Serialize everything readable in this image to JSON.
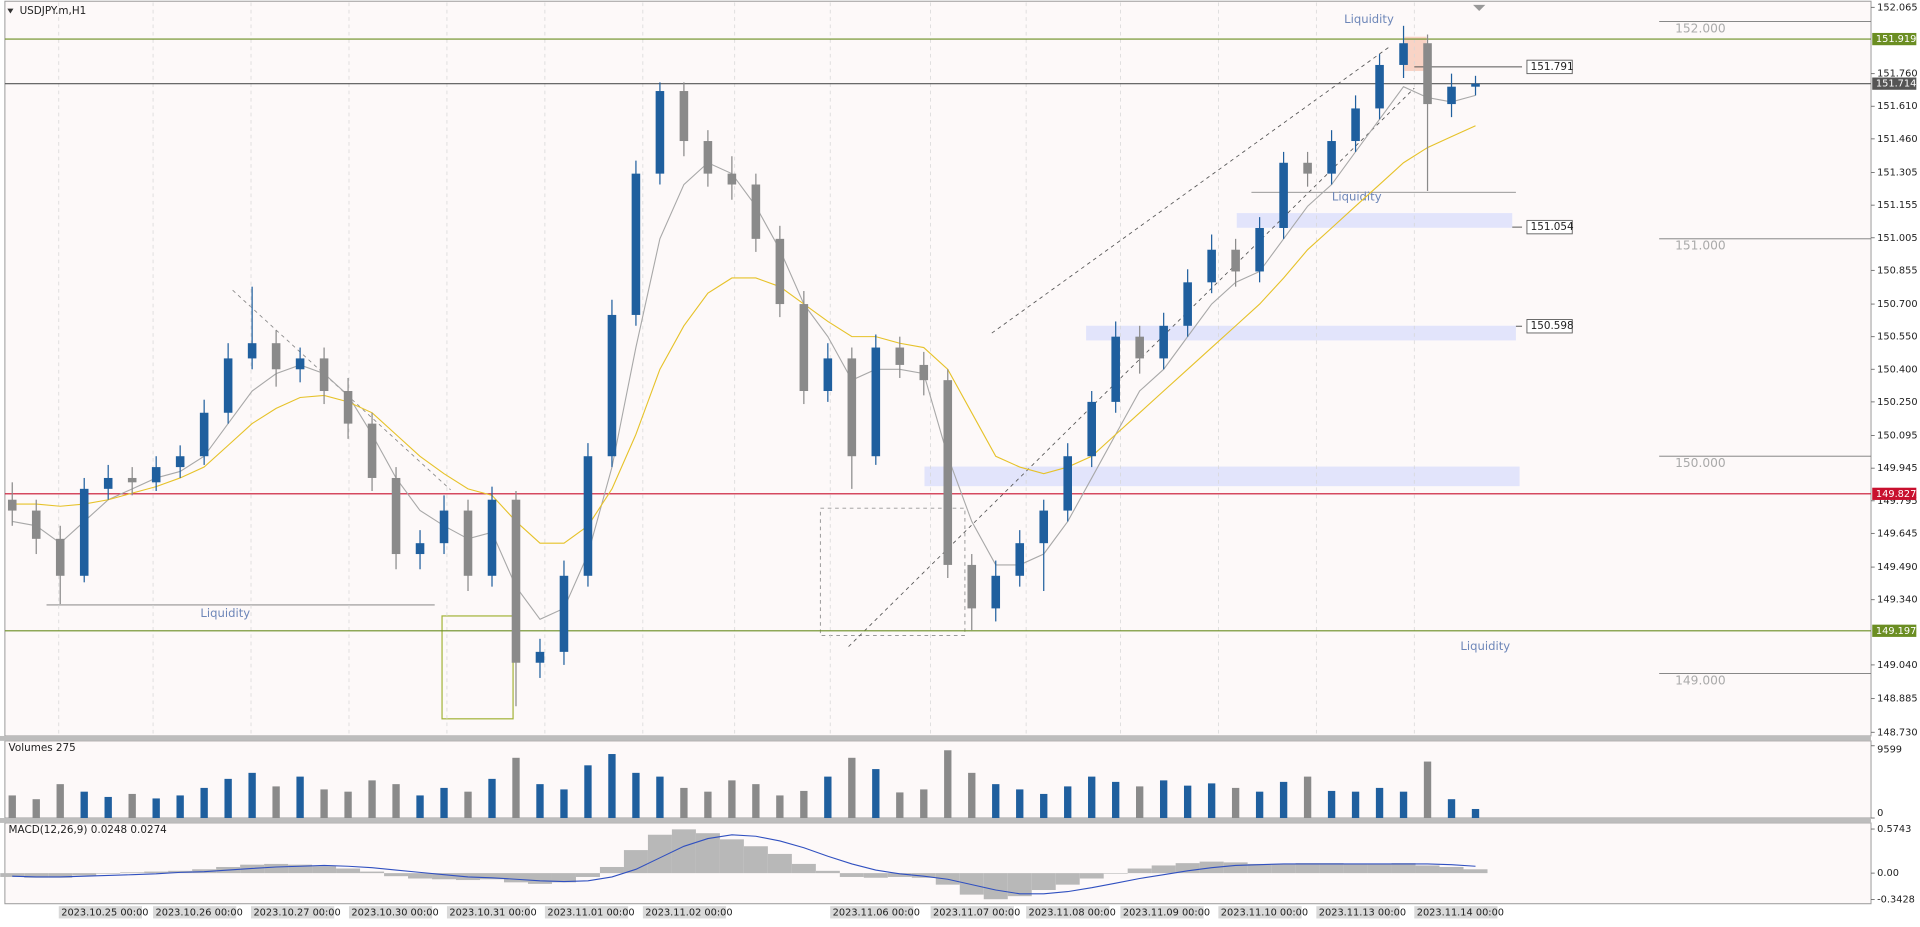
{
  "chart_data": {
    "type": "candlestick",
    "title": "USDJPY.m,H1",
    "up_color": "#1f5f9e",
    "down_color": "#8a8a8a",
    "ylim": [
      148.73,
      152.065
    ],
    "yticks": [
      {
        "value": 152.065,
        "label": "152.065"
      },
      {
        "value": 151.76,
        "label": "151.760"
      },
      {
        "value": 151.61,
        "label": "151.610"
      },
      {
        "value": 151.46,
        "label": "151.460"
      },
      {
        "value": 151.305,
        "label": "151.305"
      },
      {
        "value": 151.155,
        "label": "151.155"
      },
      {
        "value": 151.005,
        "label": "151.005"
      },
      {
        "value": 150.855,
        "label": "150.855"
      },
      {
        "value": 150.7,
        "label": "150.700"
      },
      {
        "value": 150.55,
        "label": "150.550"
      },
      {
        "value": 150.4,
        "label": "150.400"
      },
      {
        "value": 150.25,
        "label": "150.250"
      },
      {
        "value": 150.095,
        "label": "150.095"
      },
      {
        "value": 149.945,
        "label": "149.945"
      },
      {
        "value": 149.795,
        "label": "149.795"
      },
      {
        "value": 149.645,
        "label": "149.645"
      },
      {
        "value": 149.49,
        "label": "149.490"
      },
      {
        "value": 149.34,
        "label": "149.340"
      },
      {
        "value": 149.04,
        "label": "149.040"
      },
      {
        "value": 148.885,
        "label": "148.885"
      },
      {
        "value": 148.73,
        "label": "148.730"
      }
    ],
    "candles": [
      [
        149.8,
        149.88,
        149.68,
        149.75
      ],
      [
        149.75,
        149.8,
        149.55,
        149.62
      ],
      [
        149.62,
        149.68,
        149.32,
        149.45
      ],
      [
        149.45,
        149.9,
        149.42,
        149.85
      ],
      [
        149.85,
        149.96,
        149.8,
        149.9
      ],
      [
        149.9,
        149.95,
        149.82,
        149.88
      ],
      [
        149.88,
        150.0,
        149.84,
        149.95
      ],
      [
        149.95,
        150.05,
        149.9,
        150.0
      ],
      [
        150.0,
        150.26,
        149.96,
        150.2
      ],
      [
        150.2,
        150.52,
        150.15,
        150.45
      ],
      [
        150.45,
        150.78,
        150.4,
        150.52
      ],
      [
        150.52,
        150.58,
        150.32,
        150.4
      ],
      [
        150.4,
        150.5,
        150.34,
        150.45
      ],
      [
        150.45,
        150.5,
        150.24,
        150.3
      ],
      [
        150.3,
        150.36,
        150.08,
        150.15
      ],
      [
        150.15,
        150.2,
        149.84,
        149.9
      ],
      [
        149.9,
        149.95,
        149.48,
        149.55
      ],
      [
        149.55,
        149.66,
        149.48,
        149.6
      ],
      [
        149.6,
        149.82,
        149.55,
        149.75
      ],
      [
        149.75,
        149.8,
        149.38,
        149.45
      ],
      [
        149.45,
        149.86,
        149.4,
        149.8
      ],
      [
        149.8,
        149.84,
        148.85,
        149.05
      ],
      [
        149.05,
        149.16,
        148.98,
        149.1
      ],
      [
        149.1,
        149.52,
        149.04,
        149.45
      ],
      [
        149.45,
        150.06,
        149.4,
        150.0
      ],
      [
        150.0,
        150.72,
        149.95,
        150.65
      ],
      [
        150.65,
        151.36,
        150.6,
        151.3
      ],
      [
        151.3,
        151.72,
        151.25,
        151.68
      ],
      [
        151.68,
        151.72,
        151.38,
        151.45
      ],
      [
        151.45,
        151.5,
        151.24,
        151.3
      ],
      [
        151.3,
        151.38,
        151.18,
        151.25
      ],
      [
        151.25,
        151.3,
        150.94,
        151.0
      ],
      [
        151.0,
        151.06,
        150.64,
        150.7
      ],
      [
        150.7,
        150.76,
        150.24,
        150.3
      ],
      [
        150.3,
        150.52,
        150.25,
        150.45
      ],
      [
        150.45,
        150.5,
        149.85,
        150.0
      ],
      [
        150.0,
        150.56,
        149.96,
        150.5
      ],
      [
        150.5,
        150.55,
        150.36,
        150.42
      ],
      [
        150.42,
        150.48,
        150.28,
        150.35
      ],
      [
        150.35,
        150.4,
        149.44,
        149.5
      ],
      [
        149.5,
        149.55,
        149.2,
        149.3
      ],
      [
        149.3,
        149.52,
        149.24,
        149.45
      ],
      [
        149.45,
        149.66,
        149.4,
        149.6
      ],
      [
        149.6,
        149.8,
        149.38,
        149.75
      ],
      [
        149.75,
        150.06,
        149.7,
        150.0
      ],
      [
        150.0,
        150.3,
        149.95,
        150.25
      ],
      [
        150.25,
        150.62,
        150.2,
        150.55
      ],
      [
        150.55,
        150.6,
        150.38,
        150.45
      ],
      [
        150.45,
        150.66,
        150.4,
        150.6
      ],
      [
        150.6,
        150.86,
        150.55,
        150.8
      ],
      [
        150.8,
        151.02,
        150.75,
        150.95
      ],
      [
        150.95,
        151.0,
        150.78,
        150.85
      ],
      [
        150.85,
        151.1,
        150.8,
        151.05
      ],
      [
        151.05,
        151.4,
        151.0,
        151.35
      ],
      [
        151.35,
        151.4,
        151.24,
        151.3
      ],
      [
        151.3,
        151.5,
        151.25,
        151.45
      ],
      [
        151.45,
        151.66,
        151.4,
        151.6
      ],
      [
        151.6,
        151.85,
        151.55,
        151.8
      ],
      [
        151.8,
        151.98,
        151.74,
        151.9
      ],
      [
        151.9,
        151.94,
        151.22,
        151.62
      ],
      [
        151.62,
        151.76,
        151.56,
        151.7
      ],
      [
        151.7,
        151.75,
        151.66,
        151.714
      ]
    ],
    "ma_slow": {
      "color": "#e6c229",
      "values": [
        149.78,
        149.78,
        149.77,
        149.78,
        149.8,
        149.83,
        149.86,
        149.9,
        149.95,
        150.05,
        150.15,
        150.22,
        150.27,
        150.28,
        150.25,
        150.2,
        150.1,
        150.0,
        149.92,
        149.85,
        149.82,
        149.7,
        149.6,
        149.6,
        149.68,
        149.85,
        150.1,
        150.4,
        150.6,
        150.75,
        150.82,
        150.82,
        150.78,
        150.7,
        150.62,
        150.55,
        150.55,
        150.52,
        150.5,
        150.4,
        150.2,
        150.0,
        149.95,
        149.92,
        149.95,
        150.0,
        150.1,
        150.2,
        150.3,
        150.4,
        150.5,
        150.6,
        150.7,
        150.82,
        150.95,
        151.05,
        151.15,
        151.25,
        151.35,
        151.42,
        151.47,
        151.52
      ]
    },
    "ma_fast": {
      "color": "#a8a8a8",
      "values": [
        149.7,
        149.68,
        149.6,
        149.7,
        149.8,
        149.85,
        149.9,
        149.93,
        150.0,
        150.15,
        150.3,
        150.38,
        150.42,
        150.38,
        150.28,
        150.1,
        149.9,
        149.75,
        149.68,
        149.62,
        149.65,
        149.4,
        149.25,
        149.3,
        149.55,
        149.95,
        150.5,
        151.0,
        151.25,
        151.35,
        151.3,
        151.15,
        150.95,
        150.7,
        150.55,
        150.35,
        150.4,
        150.4,
        150.38,
        150.0,
        149.7,
        149.5,
        149.5,
        149.55,
        149.7,
        149.9,
        150.1,
        150.3,
        150.4,
        150.55,
        150.7,
        150.8,
        150.85,
        151.0,
        151.15,
        151.25,
        151.4,
        151.55,
        151.7,
        151.65,
        151.63,
        151.66
      ]
    },
    "levels": [
      {
        "value": 151.919,
        "color": "#6b8e23"
      },
      {
        "value": 151.714,
        "color": "#555555"
      },
      {
        "value": 149.827,
        "color": "#c8102e"
      },
      {
        "value": 149.197,
        "color": "#6b8e23"
      }
    ],
    "marked_levels": [
      151.791,
      151.054,
      150.598
    ],
    "round_levels": [
      {
        "value": 152,
        "label": "152.000"
      },
      {
        "value": 151,
        "label": "151.000"
      },
      {
        "value": 150,
        "label": "150.000"
      },
      {
        "value": 149,
        "label": "149.000"
      }
    ],
    "annotations": [
      "Liquidity",
      "Liquidity",
      "Liquidity",
      "Liquidity"
    ],
    "time_labels": [
      "2023.10.25 00:00",
      "2023.10.26 00:00",
      "2023.10.27 00:00",
      "2023.10.30 00:00",
      "2023.10.31 00:00",
      "2023.11.01 00:00",
      "2023.11.02 00:00",
      "2023.11.06 00:00",
      "2023.11.07 00:00",
      "2023.11.08 00:00",
      "2023.11.09 00:00",
      "2023.11.10 00:00",
      "2023.11.13 00:00",
      "2023.11.14 00:00"
    ],
    "volume": {
      "title": "Volumes 275",
      "ylim": [
        0,
        9599
      ],
      "yticks": [
        9599,
        0
      ],
      "values": [
        3000,
        2500,
        4500,
        3500,
        2800,
        3200,
        2600,
        3000,
        4000,
        5200,
        6000,
        4200,
        5500,
        3800,
        3500,
        5000,
        4500,
        3000,
        4000,
        3500,
        5200,
        8000,
        4500,
        3800,
        7000,
        8500,
        6000,
        5500,
        4000,
        3500,
        5000,
        4500,
        3000,
        3600,
        5500,
        8000,
        6500,
        3400,
        3800,
        9000,
        6000,
        4500,
        3800,
        3200,
        4200,
        5500,
        4800,
        4200,
        5000,
        4300,
        4600,
        4000,
        3500,
        4800,
        5500,
        3600,
        3500,
        4000,
        3500,
        7500,
        2500,
        1200
      ]
    },
    "macd": {
      "title": "MACD(12,26,9) 0.0248 0.0274",
      "hist_color": "#b8b8b8",
      "signal_color": "#3050c0",
      "ylim": [
        -0.3428,
        0.5743
      ],
      "yticks": [
        0.5743,
        {
          "value": 0,
          "label": "0.00"
        },
        -0.3428
      ],
      "histogram": [
        -0.05,
        -0.06,
        -0.06,
        -0.03,
        0,
        0.01,
        0.02,
        0.03,
        0.05,
        0.08,
        0.11,
        0.12,
        0.11,
        0.09,
        0.06,
        0.02,
        -0.04,
        -0.07,
        -0.08,
        -0.09,
        -0.08,
        -0.12,
        -0.14,
        -0.12,
        -0.05,
        0.08,
        0.3,
        0.5,
        0.57,
        0.52,
        0.44,
        0.35,
        0.25,
        0.12,
        0.03,
        -0.05,
        -0.06,
        -0.05,
        -0.06,
        -0.15,
        -0.28,
        -0.34,
        -0.3,
        -0.22,
        -0.15,
        -0.07,
        0,
        0.06,
        0.1,
        0.13,
        0.15,
        0.14,
        0.12,
        0.12,
        0.13,
        0.13,
        0.12,
        0.12,
        0.13,
        0.1,
        0.08,
        0.05
      ],
      "signal": [
        -0.04,
        -0.05,
        -0.05,
        -0.04,
        -0.03,
        -0.02,
        -0.01,
        0.01,
        0.02,
        0.04,
        0.06,
        0.08,
        0.09,
        0.1,
        0.09,
        0.07,
        0.04,
        0.01,
        -0.02,
        -0.05,
        -0.06,
        -0.08,
        -0.1,
        -0.11,
        -0.1,
        -0.05,
        0.05,
        0.2,
        0.35,
        0.45,
        0.5,
        0.48,
        0.42,
        0.33,
        0.22,
        0.12,
        0.04,
        -0.01,
        -0.04,
        -0.08,
        -0.15,
        -0.22,
        -0.27,
        -0.27,
        -0.24,
        -0.19,
        -0.13,
        -0.07,
        -0.02,
        0.03,
        0.07,
        0.1,
        0.11,
        0.12,
        0.12,
        0.12,
        0.12,
        0.12,
        0.12,
        0.12,
        0.11,
        0.09
      ]
    }
  }
}
